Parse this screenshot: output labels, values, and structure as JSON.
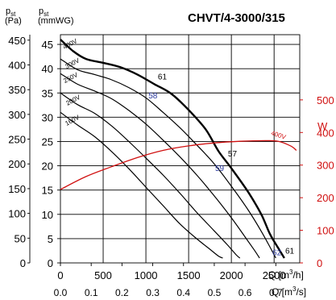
{
  "chart_data": {
    "type": "line",
    "title": "CHVT/4-3000/315",
    "y_pa_label": {
      "main": "p",
      "sub": "st",
      "unit": "(Pa)"
    },
    "y_mmwg_label": {
      "main": "p",
      "sub": "st",
      "unit": "(mmWG)"
    },
    "y_power_label": "W",
    "x_m3h_label": "Q [m",
    "x_m3h_unit_tail": "/h]",
    "x_m3s_label": "Q [m",
    "x_m3s_unit_tail": "/s]",
    "superscript": "3",
    "x_m3h_range": [
      0,
      2800
    ],
    "x_m3h_ticks": [
      "0",
      "500",
      "1000",
      "1500",
      "2000",
      "2500"
    ],
    "x_m3s_ticks": [
      "0.0",
      "0.1",
      "0.2",
      "0.3",
      "0.4",
      "0.5",
      "0.6",
      "0.7"
    ],
    "y_mmwg_range": [
      0,
      47
    ],
    "y_mmwg_ticks": [
      "0",
      "5",
      "10",
      "15",
      "20",
      "25",
      "30",
      "35",
      "40",
      "45"
    ],
    "y_pa_ticks": [
      "0",
      "50",
      "100",
      "150",
      "200",
      "250",
      "300",
      "350",
      "400",
      "450"
    ],
    "y_power_range": [
      0,
      700
    ],
    "y_power_ticks": [
      "0",
      "100",
      "200",
      "300",
      "400",
      "500"
    ],
    "grid": true,
    "series": [
      {
        "name": "400V",
        "axis": "mmWG",
        "emphasis": "bold",
        "points": [
          [
            0,
            46
          ],
          [
            150,
            43.6
          ],
          [
            300,
            42
          ],
          [
            500,
            41.2
          ],
          [
            700,
            40.3
          ],
          [
            900,
            38.8
          ],
          [
            1100,
            36.8
          ],
          [
            1300,
            34.8
          ],
          [
            1500,
            31.5
          ],
          [
            1700,
            27.5
          ],
          [
            1850,
            23
          ],
          [
            2000,
            19.5
          ],
          [
            2200,
            14.5
          ],
          [
            2350,
            10
          ],
          [
            2450,
            6
          ],
          [
            2550,
            3
          ],
          [
            2620,
            1
          ]
        ]
      },
      {
        "name": "300V",
        "axis": "mmWG",
        "emphasis": "normal",
        "points": [
          [
            0,
            42
          ],
          [
            200,
            39.8
          ],
          [
            400,
            38.8
          ],
          [
            600,
            37.7
          ],
          [
            800,
            36.1
          ],
          [
            1000,
            34
          ],
          [
            1200,
            31
          ],
          [
            1400,
            27.8
          ],
          [
            1600,
            24.2
          ],
          [
            1800,
            20.4
          ],
          [
            2000,
            15.8
          ],
          [
            2200,
            10.8
          ],
          [
            2350,
            6.5
          ],
          [
            2460,
            3
          ],
          [
            2520,
            1
          ]
        ]
      },
      {
        "name": "250V",
        "axis": "mmWG",
        "emphasis": "normal",
        "points": [
          [
            0,
            39
          ],
          [
            200,
            36.8
          ],
          [
            400,
            35.4
          ],
          [
            600,
            33.8
          ],
          [
            800,
            31.4
          ],
          [
            1000,
            28.6
          ],
          [
            1200,
            25.3
          ],
          [
            1400,
            21.8
          ],
          [
            1600,
            18
          ],
          [
            1800,
            13.8
          ],
          [
            2000,
            9.3
          ],
          [
            2150,
            5.6
          ],
          [
            2270,
            2.6
          ],
          [
            2330,
            1
          ]
        ]
      },
      {
        "name": "200V",
        "axis": "mmWG",
        "emphasis": "normal",
        "points": [
          [
            0,
            35
          ],
          [
            200,
            32.6
          ],
          [
            400,
            30.8
          ],
          [
            600,
            28.2
          ],
          [
            800,
            25
          ],
          [
            1000,
            21.6
          ],
          [
            1200,
            18.1
          ],
          [
            1400,
            14.3
          ],
          [
            1600,
            10.3
          ],
          [
            1800,
            6.6
          ],
          [
            1950,
            3.8
          ],
          [
            2060,
            1.6
          ],
          [
            2100,
            1
          ]
        ]
      },
      {
        "name": "160V",
        "axis": "mmWG",
        "emphasis": "normal",
        "points": [
          [
            0,
            31
          ],
          [
            200,
            28.4
          ],
          [
            400,
            26
          ],
          [
            600,
            22.9
          ],
          [
            800,
            19.4
          ],
          [
            1000,
            15.6
          ],
          [
            1200,
            11.8
          ],
          [
            1400,
            8
          ],
          [
            1600,
            4.9
          ],
          [
            1750,
            2.8
          ],
          [
            1850,
            1.4
          ],
          [
            1900,
            1
          ]
        ]
      },
      {
        "name": "400V",
        "axis": "W",
        "emphasis": "power",
        "points": [
          [
            0,
            225
          ],
          [
            300,
            265
          ],
          [
            600,
            295
          ],
          [
            900,
            323
          ],
          [
            1200,
            345
          ],
          [
            1500,
            359
          ],
          [
            1800,
            368
          ],
          [
            2100,
            373
          ],
          [
            2400,
            375
          ],
          [
            2550,
            373
          ],
          [
            2700,
            358
          ],
          [
            2760,
            345
          ]
        ]
      }
    ],
    "markers": [
      {
        "text": "61",
        "q": 1140,
        "mmwg": 37.8,
        "color": "black"
      },
      {
        "text": "58",
        "q": 1030,
        "mmwg": 33.9,
        "color": "blue"
      },
      {
        "text": "57",
        "q": 1960,
        "mmwg": 21.9,
        "color": "black"
      },
      {
        "text": "59",
        "q": 1810,
        "mmwg": 18.9,
        "color": "blue"
      },
      {
        "text": "62",
        "q": 2480,
        "mmwg": 1.6,
        "color": "blue"
      },
      {
        "text": "61",
        "q": 2630,
        "mmwg": 1.9,
        "color": "black"
      }
    ]
  }
}
